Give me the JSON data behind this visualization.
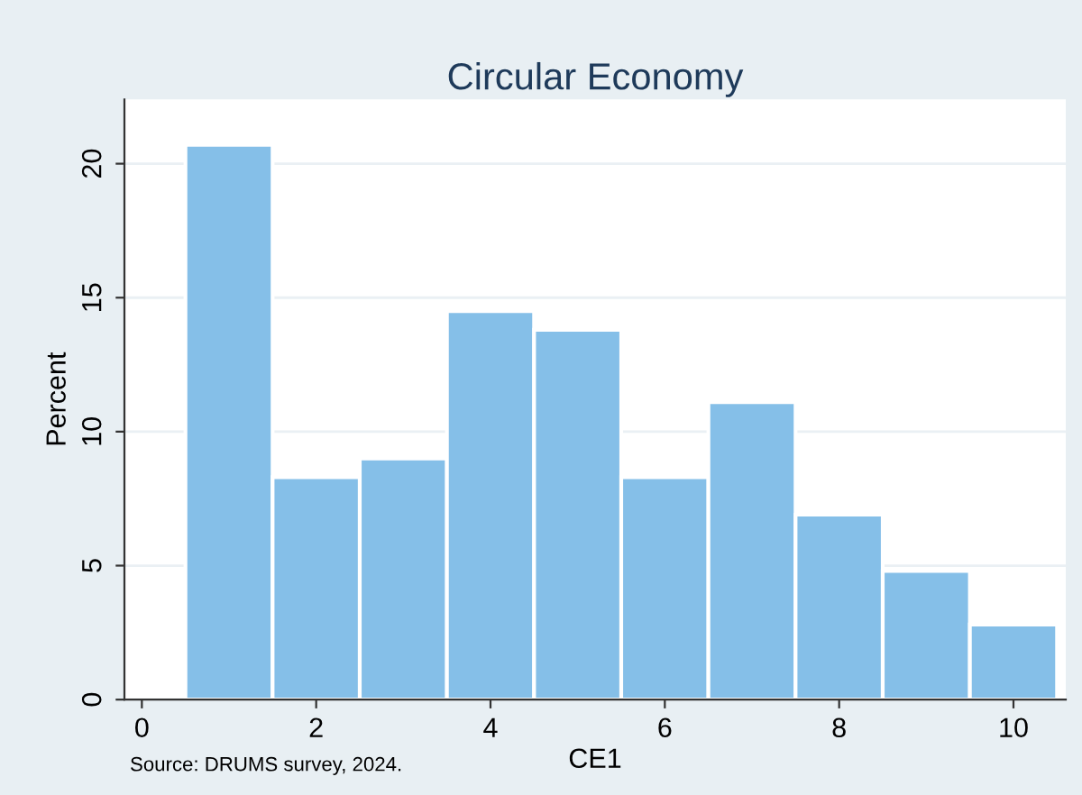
{
  "chart_data": {
    "type": "histogram",
    "title": "Circular Economy",
    "xlabel": "CE1",
    "ylabel": "Percent",
    "bins": [
      0.5,
      1.5,
      2.5,
      3.5,
      4.5,
      5.5,
      6.5,
      7.5,
      8.5,
      9.5,
      10.5
    ],
    "values": [
      20.7,
      8.3,
      9.0,
      14.5,
      13.8,
      8.3,
      11.1,
      6.9,
      4.8,
      2.8
    ],
    "color": "#85bfe8",
    "xlim": [
      -0.2,
      10.6
    ],
    "xticks": [
      0,
      2,
      4,
      6,
      8,
      10
    ],
    "ylim": [
      0,
      22.4
    ],
    "yticks": [
      0,
      5,
      10,
      15,
      20
    ],
    "grid": "y",
    "annotations": [
      "Source: DRUMS survey, 2024."
    ]
  }
}
